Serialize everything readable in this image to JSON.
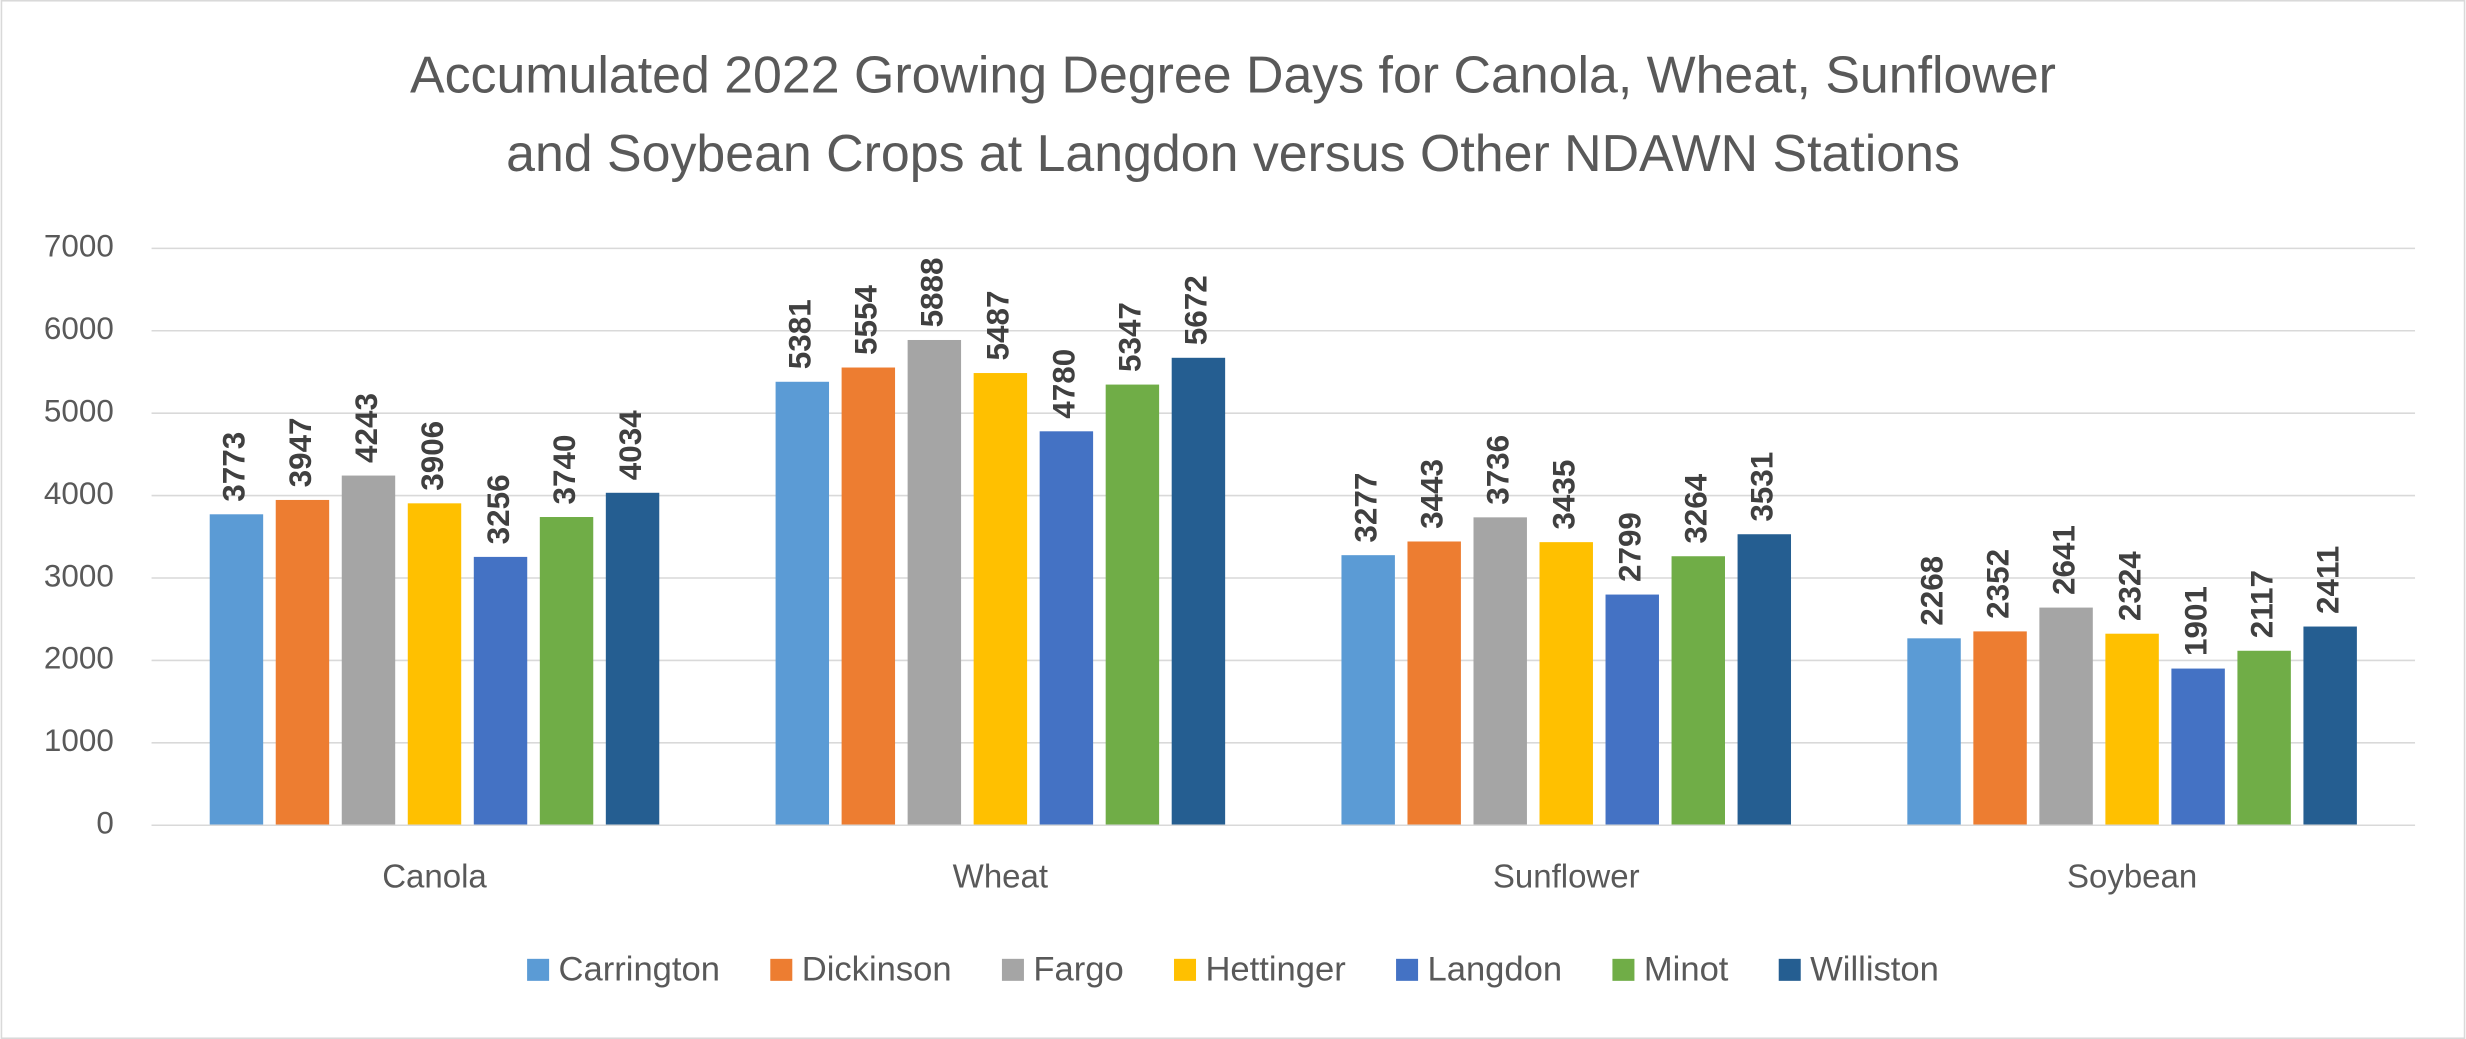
{
  "chart_data": {
    "type": "bar",
    "title": [
      "Accumulated 2022 Growing Degree Days for Canola, Wheat, Sunflower",
      "and Soybean Crops at Langdon versus Other NDAWN Stations"
    ],
    "categories": [
      "Canola",
      "Wheat",
      "Sunflower",
      "Soybean"
    ],
    "series": [
      {
        "name": "Carrington",
        "color": "#5b9bd5",
        "values": [
          3773,
          5381,
          3277,
          2268
        ]
      },
      {
        "name": "Dickinson",
        "color": "#ed7d31",
        "values": [
          3947,
          5554,
          3443,
          2352
        ]
      },
      {
        "name": "Fargo",
        "color": "#a5a5a5",
        "values": [
          4243,
          5888,
          3736,
          2641
        ]
      },
      {
        "name": "Hettinger",
        "color": "#ffc000",
        "values": [
          3906,
          5487,
          3435,
          2324
        ]
      },
      {
        "name": "Langdon",
        "color": "#4472c4",
        "values": [
          3256,
          4780,
          2799,
          1901
        ]
      },
      {
        "name": "Minot",
        "color": "#70ad47",
        "values": [
          3740,
          5347,
          3264,
          2117
        ]
      },
      {
        "name": "Williston",
        "color": "#255e91",
        "values": [
          4034,
          5672,
          3531,
          2411
        ]
      }
    ],
    "ylim": [
      0,
      7000
    ],
    "yticks": [
      0,
      1000,
      2000,
      3000,
      4000,
      5000,
      6000,
      7000
    ],
    "grid": true,
    "legend": "bottom"
  }
}
